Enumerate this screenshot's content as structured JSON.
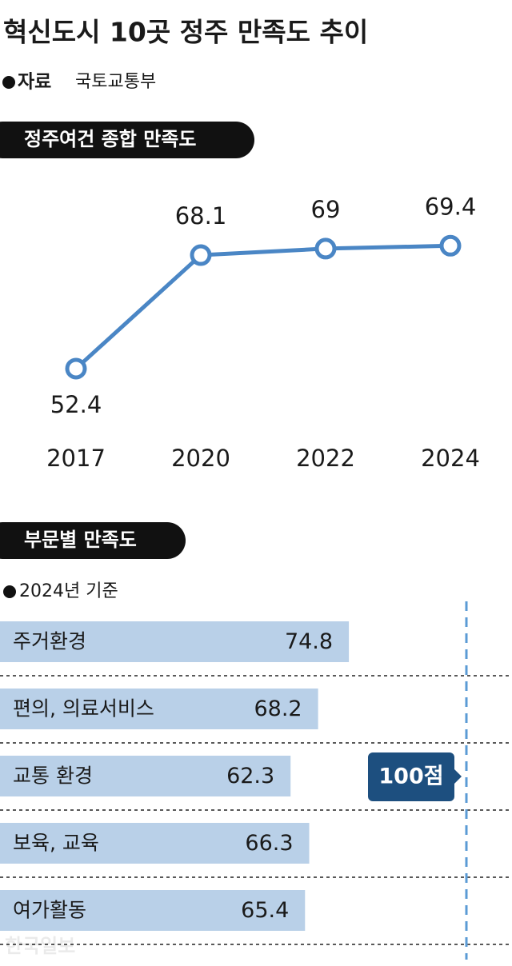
{
  "title": "혁신도시 10곳 정주 만족도 추이",
  "source_label": "자료",
  "source": "국토교통부",
  "chart_data": [
    {
      "type": "line",
      "title": "정주여건 종합 만족도",
      "categories": [
        "2017",
        "2020",
        "2022",
        "2024"
      ],
      "values": [
        52.4,
        68.1,
        69,
        69.4
      ],
      "color": "#4a86c5",
      "ylim": [
        40,
        75
      ]
    },
    {
      "type": "hbar",
      "title": "부문별 만족도",
      "subtitle": "2024년 기준",
      "categories": [
        "주거환경",
        "편의, 의료서비스",
        "교통 환경",
        "보육, 교육",
        "여가활동"
      ],
      "values": [
        74.8,
        68.2,
        62.3,
        66.3,
        65.4
      ],
      "color": "#b9d0e8",
      "xlim": [
        0,
        100
      ],
      "reference_label": "100점"
    }
  ],
  "watermark": "한국일보"
}
